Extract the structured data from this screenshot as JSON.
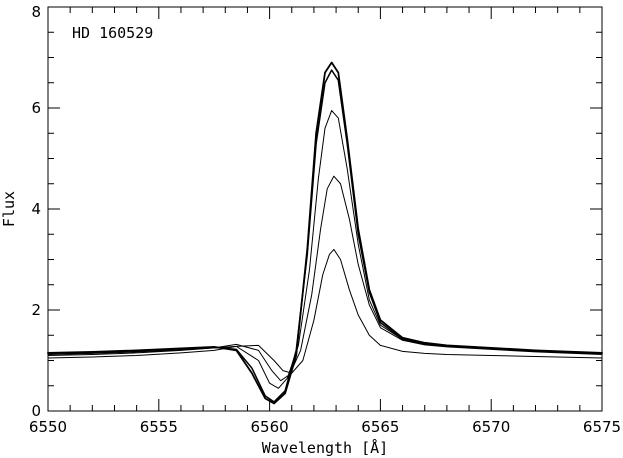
{
  "chart_data": {
    "type": "line",
    "annotation": "HD 160529",
    "xlabel": "Wavelength [Å]",
    "ylabel": "Flux",
    "xlim": [
      6550,
      6575
    ],
    "ylim": [
      0,
      8
    ],
    "x_ticks": [
      "6550",
      "6555",
      "6560",
      "6565",
      "6570",
      "6575"
    ],
    "y_ticks": [
      "0",
      "2",
      "4",
      "6",
      "8"
    ],
    "grid": false,
    "legend": "none",
    "line_color": "#000000",
    "series": [
      {
        "x": [
          6550,
          6552,
          6554,
          6556,
          6557.5,
          6558.5,
          6559.2,
          6559.8,
          6560.2,
          6560.7,
          6561.2,
          6561.7,
          6562.1,
          6562.5,
          6562.8,
          6563.1,
          6563.5,
          6564,
          6564.5,
          6565,
          6566,
          6567,
          6568,
          6570,
          6572,
          6575
        ],
        "y": [
          1.15,
          1.17,
          1.2,
          1.24,
          1.27,
          1.2,
          0.75,
          0.25,
          0.15,
          0.35,
          1.1,
          3.2,
          5.5,
          6.7,
          6.9,
          6.7,
          5.4,
          3.6,
          2.4,
          1.8,
          1.45,
          1.35,
          1.3,
          1.25,
          1.2,
          1.15
        ]
      },
      {
        "x": [
          6550,
          6552,
          6554,
          6556,
          6557.5,
          6558.5,
          6559.2,
          6559.8,
          6560.2,
          6560.7,
          6561.2,
          6561.7,
          6562.1,
          6562.5,
          6562.8,
          6563.1,
          6563.5,
          6564,
          6564.5,
          6565,
          6566,
          6567,
          6568,
          6570,
          6572,
          6575
        ],
        "y": [
          1.14,
          1.16,
          1.19,
          1.23,
          1.26,
          1.22,
          0.85,
          0.3,
          0.18,
          0.4,
          1.2,
          3.1,
          5.3,
          6.5,
          6.75,
          6.55,
          5.3,
          3.5,
          2.35,
          1.75,
          1.42,
          1.33,
          1.29,
          1.24,
          1.19,
          1.14
        ]
      },
      {
        "x": [
          6550,
          6552,
          6554,
          6556,
          6557.5,
          6558.5,
          6559.5,
          6560,
          6560.4,
          6560.8,
          6561.3,
          6561.8,
          6562.2,
          6562.5,
          6562.8,
          6563.1,
          6563.5,
          6564,
          6564.5,
          6565,
          6566,
          6567,
          6568,
          6570,
          6572,
          6575
        ],
        "y": [
          1.12,
          1.14,
          1.17,
          1.21,
          1.25,
          1.28,
          1.0,
          0.55,
          0.45,
          0.65,
          1.3,
          2.8,
          4.6,
          5.6,
          5.95,
          5.8,
          4.8,
          3.3,
          2.2,
          1.7,
          1.42,
          1.32,
          1.28,
          1.23,
          1.18,
          1.13
        ]
      },
      {
        "x": [
          6550,
          6552,
          6554,
          6556,
          6557.5,
          6558.5,
          6559.5,
          6560.1,
          6560.5,
          6560.9,
          6561.4,
          6561.9,
          6562.3,
          6562.6,
          6562.9,
          6563.2,
          6563.6,
          6564,
          6564.5,
          6565,
          6566,
          6567,
          6568,
          6570,
          6572,
          6575
        ],
        "y": [
          1.1,
          1.12,
          1.15,
          1.2,
          1.25,
          1.32,
          1.2,
          0.8,
          0.6,
          0.72,
          1.2,
          2.3,
          3.6,
          4.4,
          4.65,
          4.5,
          3.8,
          2.9,
          2.1,
          1.65,
          1.4,
          1.31,
          1.27,
          1.22,
          1.17,
          1.12
        ]
      },
      {
        "x": [
          6550,
          6552,
          6554,
          6556,
          6557.5,
          6558.5,
          6559.5,
          6560.2,
          6560.6,
          6561,
          6561.5,
          6562,
          6562.4,
          6562.7,
          6562.9,
          6563.2,
          6563.6,
          6564,
          6564.5,
          6565,
          6566,
          6567,
          6568,
          6570,
          6572,
          6575
        ],
        "y": [
          1.05,
          1.07,
          1.1,
          1.15,
          1.2,
          1.28,
          1.3,
          1.0,
          0.8,
          0.75,
          1.0,
          1.8,
          2.7,
          3.1,
          3.2,
          3.0,
          2.4,
          1.9,
          1.5,
          1.3,
          1.18,
          1.14,
          1.12,
          1.1,
          1.08,
          1.05
        ]
      }
    ]
  }
}
